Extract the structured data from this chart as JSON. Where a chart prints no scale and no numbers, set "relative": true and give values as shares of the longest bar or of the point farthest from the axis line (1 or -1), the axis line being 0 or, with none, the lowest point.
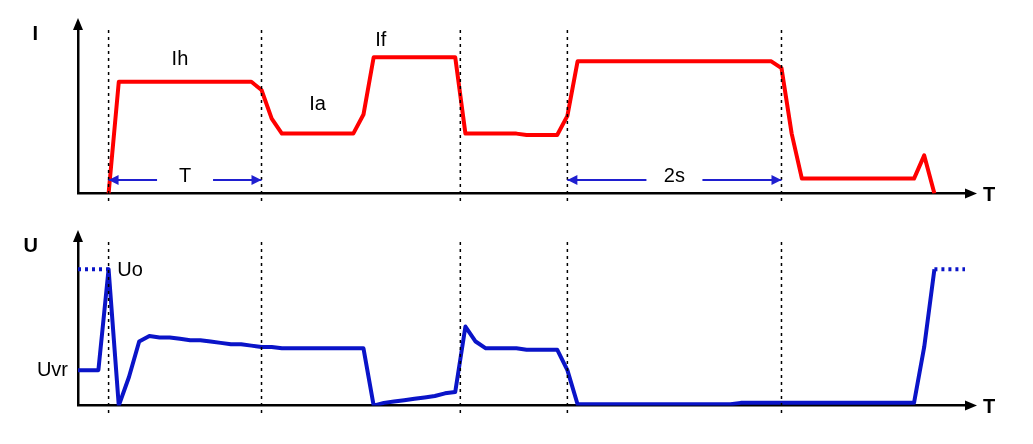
{
  "chart_data": [
    {
      "type": "line",
      "relative": true,
      "xlabel": "T",
      "ylabel": "I",
      "marker": "none",
      "grid": "x",
      "categories": [
        null,
        null,
        null,
        null,
        null,
        null,
        null,
        null,
        null,
        null,
        null,
        null,
        null,
        null,
        null,
        null,
        null,
        null,
        null,
        null,
        null,
        null,
        null,
        null,
        null,
        null,
        null,
        null,
        null,
        null,
        null,
        null,
        null,
        null,
        null,
        null,
        null,
        null,
        null,
        null,
        null,
        null,
        null,
        null,
        null,
        null,
        null,
        null,
        null,
        null,
        null,
        null,
        null,
        null,
        null,
        null,
        null,
        null,
        null,
        null,
        null,
        null,
        null,
        null,
        null,
        null,
        null,
        null,
        null,
        null,
        null,
        null,
        null,
        null,
        null,
        null,
        null,
        null,
        null,
        null,
        null,
        null,
        null,
        null,
        null,
        null,
        null,
        null
      ],
      "series": [
        {
          "color": "#ff0000",
          "line_style": "solid",
          "values": [
            null,
            null,
            null,
            0,
            0.82,
            0.82,
            0.82,
            0.82,
            0.82,
            0.82,
            0.82,
            0.82,
            0.82,
            0.82,
            0.82,
            0.82,
            0.82,
            0.82,
            0.76,
            0.55,
            0.44,
            0.44,
            0.44,
            0.44,
            0.44,
            0.44,
            0.44,
            0.44,
            0.58,
            1,
            1,
            1,
            1,
            1,
            1,
            1,
            1,
            1,
            0.44,
            0.44,
            0.44,
            0.44,
            0.44,
            0.44,
            0.43,
            0.43,
            0.43,
            0.43,
            0.57,
            0.97,
            0.97,
            0.97,
            0.97,
            0.97,
            0.97,
            0.97,
            0.97,
            0.97,
            0.97,
            0.97,
            0.97,
            0.97,
            0.97,
            0.97,
            0.97,
            0.97,
            0.97,
            0.97,
            0.97,
            0.92,
            0.44,
            0.11,
            0.11,
            0.11,
            0.11,
            0.11,
            0.11,
            0.11,
            0.11,
            0.11,
            0.11,
            0.11,
            0.11,
            0.28,
            0,
            null,
            null,
            null
          ]
        }
      ],
      "annotations": [
        "Ih",
        "Ia",
        "If",
        "T",
        "2s"
      ]
    },
    {
      "type": "line",
      "relative": true,
      "xlabel": "T",
      "ylabel": "U",
      "marker": "none",
      "grid": "x",
      "categories": [
        null,
        null,
        null,
        null,
        null,
        null,
        null,
        null,
        null,
        null,
        null,
        null,
        null,
        null,
        null,
        null,
        null,
        null,
        null,
        null,
        null,
        null,
        null,
        null,
        null,
        null,
        null,
        null,
        null,
        null,
        null,
        null,
        null,
        null,
        null,
        null,
        null,
        null,
        null,
        null,
        null,
        null,
        null,
        null,
        null,
        null,
        null,
        null,
        null,
        null,
        null,
        null,
        null,
        null,
        null,
        null,
        null,
        null,
        null,
        null,
        null,
        null,
        null,
        null,
        null,
        null,
        null,
        null,
        null,
        null,
        null,
        null,
        null,
        null,
        null,
        null,
        null,
        null,
        null,
        null,
        null,
        null,
        null,
        null,
        null,
        null,
        null,
        null
      ],
      "series": [
        {
          "color": "#0a14c8",
          "line_style": "solid",
          "values": [
            0.26,
            0.26,
            0.26,
            1,
            0,
            0.21,
            0.47,
            0.51,
            0.5,
            0.5,
            0.49,
            0.48,
            0.48,
            0.47,
            0.46,
            0.45,
            0.45,
            0.44,
            0.43,
            0.43,
            0.42,
            0.42,
            0.42,
            0.42,
            0.42,
            0.42,
            0.42,
            0.42,
            0.42,
            0,
            0.02,
            0.03,
            0.04,
            0.05,
            0.06,
            0.07,
            0.09,
            0.1,
            0.58,
            0.47,
            0.42,
            0.42,
            0.42,
            0.42,
            0.41,
            0.41,
            0.41,
            0.41,
            0.26,
            0.01,
            0.01,
            0.01,
            0.01,
            0.01,
            0.01,
            0.01,
            0.01,
            0.01,
            0.01,
            0.01,
            0.01,
            0.01,
            0.01,
            0.01,
            0.01,
            0.02,
            0.02,
            0.02,
            0.02,
            0.02,
            0.02,
            0.02,
            0.02,
            0.02,
            0.02,
            0.02,
            0.02,
            0.02,
            0.02,
            0.02,
            0.02,
            0.02,
            0.02,
            0.43,
            1,
            null,
            null,
            null
          ]
        },
        {
          "color": "#0a14c8",
          "line_style": "dotted",
          "values": [
            1,
            1,
            1,
            1,
            null,
            null,
            null,
            null,
            null,
            null,
            null,
            null,
            null,
            null,
            null,
            null,
            null,
            null,
            null,
            null,
            null,
            null,
            null,
            null,
            null,
            null,
            null,
            null,
            null,
            null,
            null,
            null,
            null,
            null,
            null,
            null,
            null,
            null,
            null,
            null,
            null,
            null,
            null,
            null,
            null,
            null,
            null,
            null,
            null,
            null,
            null,
            null,
            null,
            null,
            null,
            null,
            null,
            null,
            null,
            null,
            null,
            null,
            null,
            null,
            null,
            null,
            null,
            null,
            null,
            null,
            null,
            null,
            null,
            null,
            null,
            null,
            null,
            null,
            null,
            null,
            null,
            null,
            null,
            null,
            1,
            1,
            1,
            1
          ]
        }
      ],
      "annotations": [
        "Uo",
        "Uvr"
      ]
    }
  ]
}
